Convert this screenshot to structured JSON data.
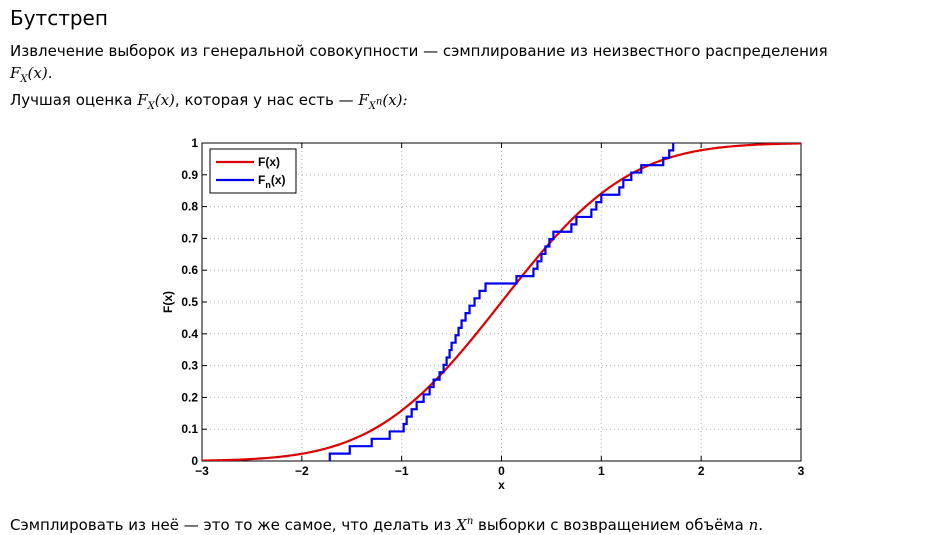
{
  "title": "Бутстреп",
  "paragraph1": {
    "text": "Извлечение выборок из генеральной совокупности — сэмплирование из неизвестного распределения",
    "math": "F_X(x)."
  },
  "paragraph2": {
    "prefix": "Лучшая оценка",
    "math1": "F_X(x)",
    "middle": ", которая у нас есть —",
    "math2": "F_{X^n}(x):"
  },
  "paragraph3": {
    "prefix": "Сэмплировать из неё — это то же самое, что делать из",
    "math1": "X^n",
    "middle": "выборки с возвращением объёма",
    "math2": "n."
  },
  "chart_data": {
    "type": "line",
    "xlabel": "x",
    "ylabel": "F(x)",
    "xlim": [
      -3,
      3
    ],
    "ylim": [
      0,
      1
    ],
    "x_ticks": [
      -3,
      -2,
      -1,
      0,
      1,
      2,
      3
    ],
    "y_ticks": [
      0,
      0.1,
      0.2,
      0.3,
      0.4,
      0.5,
      0.6,
      0.7,
      0.8,
      0.9,
      1
    ],
    "grid": true,
    "legend_position": "top-left",
    "series": [
      {
        "name": "F(x)",
        "color": "#dd0000",
        "kind": "normal-cdf",
        "mean": 0,
        "std": 1
      },
      {
        "name": "F_n(x)",
        "legend_label": "F",
        "legend_subscript": "n",
        "legend_suffix": "(x)",
        "color": "#0000ee",
        "kind": "ecdf",
        "step_x": [
          -1.72,
          -1.52,
          -1.3,
          -1.12,
          -0.98,
          -0.95,
          -0.9,
          -0.85,
          -0.78,
          -0.72,
          -0.68,
          -0.62,
          -0.58,
          -0.55,
          -0.52,
          -0.5,
          -0.46,
          -0.43,
          -0.4,
          -0.36,
          -0.32,
          -0.27,
          -0.22,
          -0.16,
          0.15,
          0.32,
          0.36,
          0.4,
          0.44,
          0.48,
          0.52,
          0.7,
          0.75,
          0.9,
          0.95,
          1.0,
          1.18,
          1.22,
          1.3,
          1.4,
          1.62,
          1.68,
          1.72
        ]
      }
    ]
  }
}
